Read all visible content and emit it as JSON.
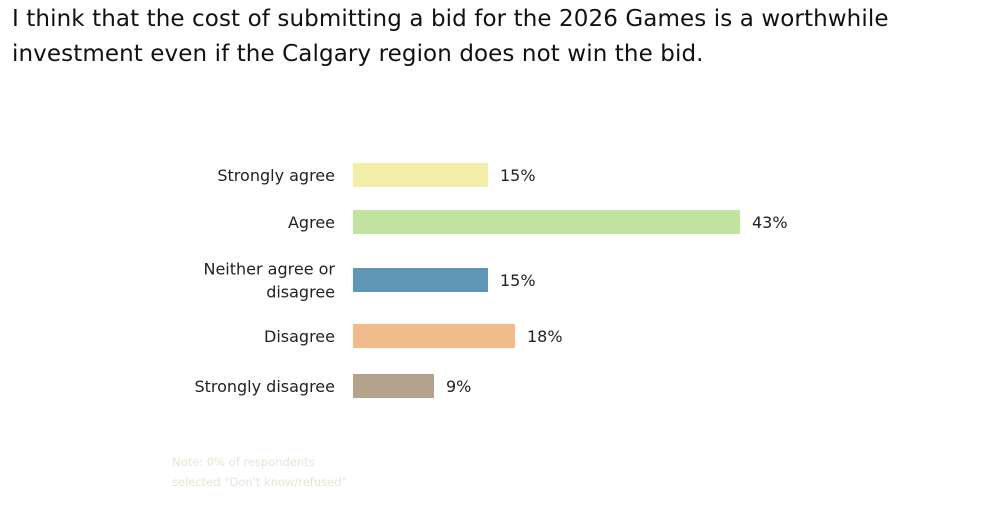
{
  "chart_data": {
    "type": "bar",
    "orientation": "horizontal",
    "title": "I think that the cost of submitting a bid for the 2026 Games is a worthwhile investment even if the Calgary region does not win the bid.",
    "categories": [
      [
        "Strongly agree"
      ],
      [
        "Agree"
      ],
      [
        "Neither agree or",
        "disagree"
      ],
      [
        "Disagree"
      ],
      [
        "Strongly disagree"
      ]
    ],
    "values": [
      15,
      43,
      15,
      18,
      9
    ],
    "value_labels": [
      "15%",
      "43%",
      "15%",
      "18%",
      "9%"
    ],
    "colors": [
      "#f3efa8",
      "#c3e3a0",
      "#5f96b5",
      "#f2bb8c",
      "#b4a28c"
    ],
    "unit": "%",
    "grid": false,
    "note": [
      "Note: 0% of respondents",
      "selected \"Don't know/refused\""
    ]
  }
}
